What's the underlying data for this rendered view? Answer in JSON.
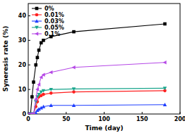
{
  "chart_data": {
    "type": "line",
    "x_label": "Time (day)",
    "y_label": "Syneresis rate (%)",
    "x": [
      0,
      3,
      5,
      7,
      10,
      12,
      14,
      17,
      20,
      30,
      60,
      180
    ],
    "series": [
      {
        "name": "0%",
        "color": "#000000",
        "marker": "square",
        "values": [
          0,
          0,
          7,
          13,
          20,
          23,
          26,
          29,
          30,
          31.5,
          33.5,
          36.7
        ]
      },
      {
        "name": "0.01%",
        "color": "#ff2020",
        "marker": "circle",
        "values": [
          0,
          0,
          0,
          0,
          3,
          5,
          7,
          7.5,
          8,
          8.5,
          9,
          9.5
        ]
      },
      {
        "name": "0.03%",
        "color": "#1f3fff",
        "marker": "triangle-up",
        "values": [
          0,
          0,
          0,
          0,
          0.5,
          1.5,
          2,
          2.5,
          3,
          3.5,
          3.5,
          3.8
        ]
      },
      {
        "name": "0.05%",
        "color": "#1aa58c",
        "marker": "triangle-down",
        "values": [
          0,
          0,
          0,
          0,
          5,
          7,
          8,
          9,
          9.5,
          10,
          10.2,
          10.5
        ]
      },
      {
        "name": "0.1%",
        "color": "#b548e6",
        "marker": "triangle-left",
        "values": [
          0,
          0,
          0,
          0,
          6,
          10,
          12,
          15,
          16,
          17,
          19,
          21
        ]
      }
    ],
    "xlim": [
      0,
      200
    ],
    "xticks": [
      0,
      50,
      100,
      150,
      200
    ],
    "ylim": [
      0,
      45
    ],
    "yticks": [
      0,
      10,
      20,
      30,
      40
    ],
    "legend": "top-left",
    "grid": false
  }
}
